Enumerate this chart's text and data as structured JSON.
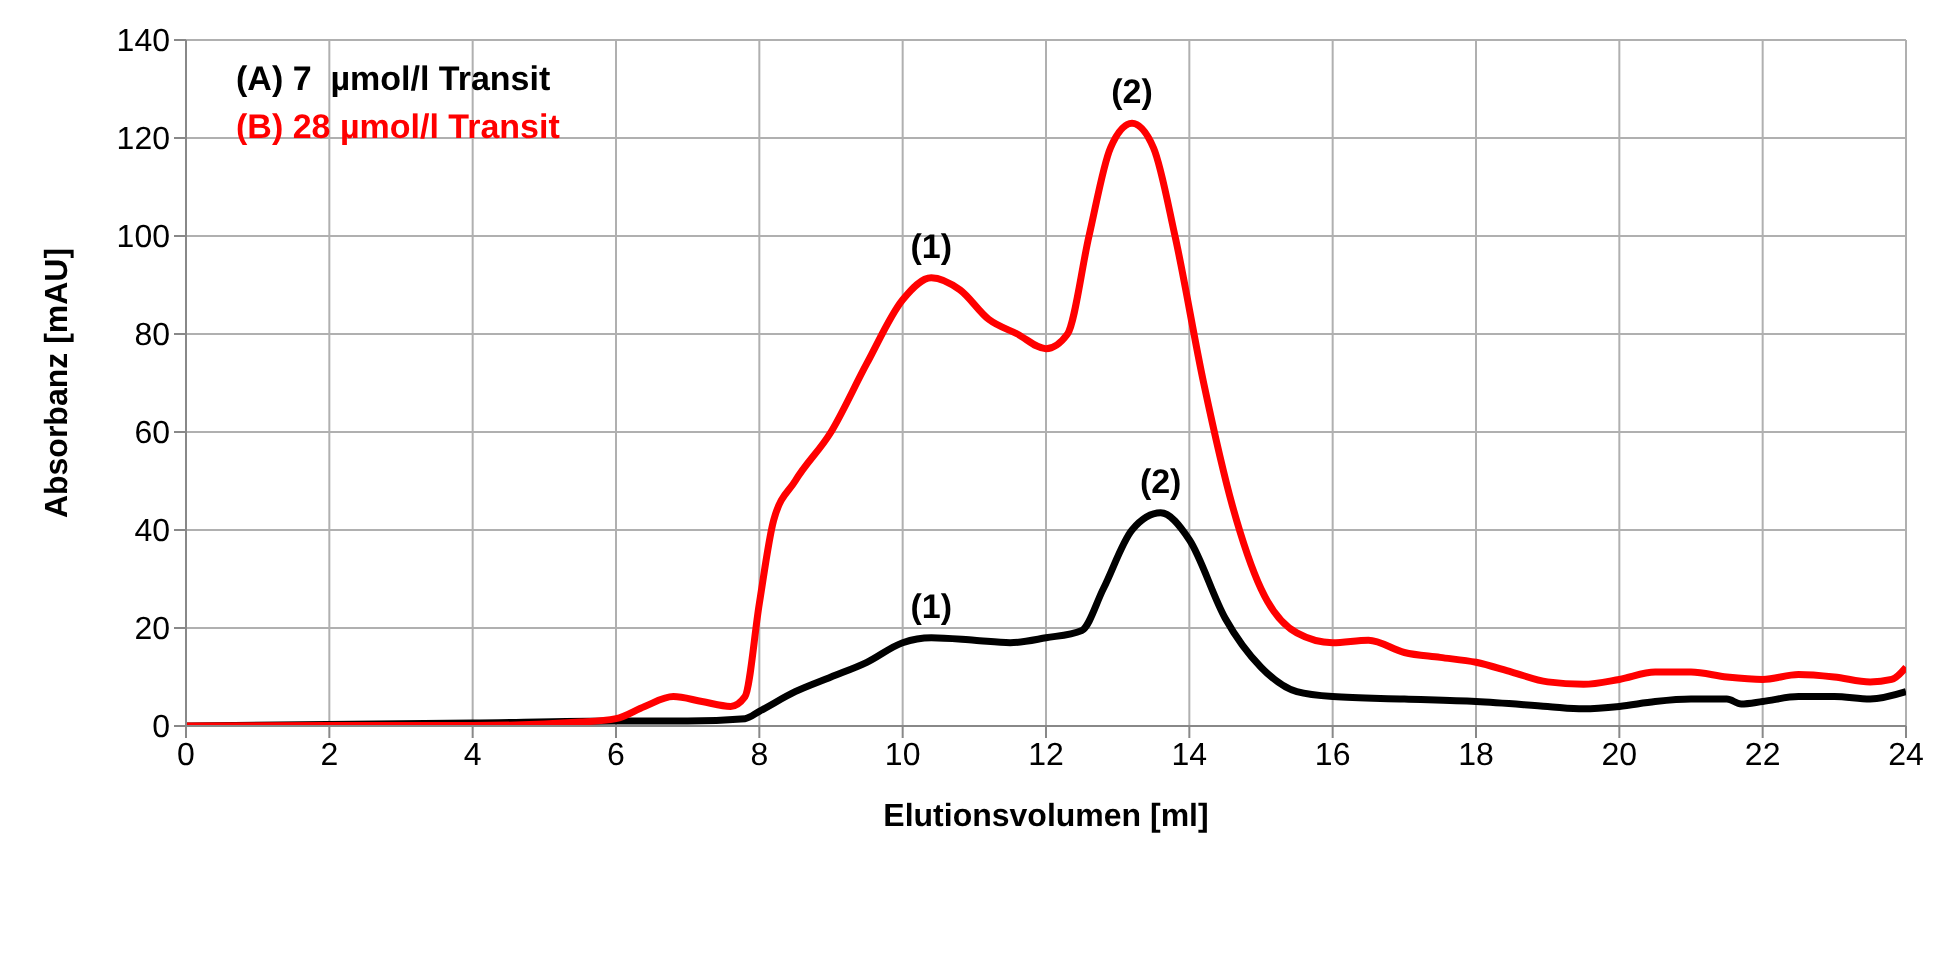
{
  "chart_data": {
    "type": "line",
    "xlabel": "Elutionsvolumen [ml]",
    "ylabel": "Absorbanz [mAU]",
    "xlim": [
      0,
      24
    ],
    "xticks": [
      0,
      2,
      4,
      6,
      8,
      10,
      12,
      14,
      16,
      18,
      20,
      22,
      24
    ],
    "ylim": [
      0,
      140
    ],
    "yticks": [
      0,
      20,
      40,
      60,
      80,
      100,
      120,
      140
    ],
    "grid": true,
    "legend": "top left",
    "marker": "none",
    "line_style": "solid",
    "series": [
      {
        "name": "(A) 7  µmol/l Transit",
        "color": "#000000",
        "x": [
          0,
          4,
          6,
          7,
          7.8,
          8,
          8.5,
          9,
          9.5,
          10,
          10.4,
          11,
          11.5,
          12,
          12.5,
          12.8,
          13.2,
          13.6,
          14,
          14.5,
          15,
          15.5,
          16,
          17,
          18,
          19,
          19.5,
          20,
          20.5,
          21,
          21.5,
          21.7,
          22,
          22.5,
          23,
          23.5,
          24
        ],
        "values": [
          0,
          0.6,
          1,
          1,
          1.5,
          3,
          7,
          10,
          13,
          17,
          18,
          17.5,
          17,
          18,
          19.5,
          28,
          40,
          43.5,
          38,
          22,
          12,
          7,
          6,
          5.5,
          5,
          4,
          3.5,
          4,
          5,
          5.5,
          5.5,
          4.5,
          5,
          6,
          6,
          5.5,
          7
        ]
      },
      {
        "name": "(B) 28 µmol/l Transit",
        "color": "#ff0000",
        "x": [
          0,
          2,
          4,
          5.5,
          6,
          6.4,
          6.8,
          7.2,
          7.6,
          7.8,
          8,
          8.2,
          8.5,
          9,
          9.5,
          10,
          10.4,
          10.8,
          11.2,
          11.6,
          12,
          12.3,
          12.6,
          12.9,
          13.2,
          13.5,
          13.8,
          14.2,
          14.6,
          15,
          15.5,
          16,
          16.5,
          17,
          17.5,
          18,
          18.5,
          19,
          19.5,
          20,
          20.5,
          21,
          21.5,
          22,
          22.5,
          23,
          23.5,
          23.8,
          24
        ],
        "values": [
          0,
          0.1,
          0.1,
          0.8,
          1.5,
          4,
          6,
          5,
          4,
          6,
          25,
          42,
          50,
          60,
          74,
          87,
          91.5,
          89,
          83,
          80,
          77,
          80,
          100,
          118,
          123,
          118,
          100,
          70,
          45,
          28,
          19,
          17,
          17.5,
          15,
          14,
          13,
          11,
          9,
          8.5,
          9.5,
          11,
          11,
          10,
          9.5,
          10.5,
          10,
          9,
          9.5,
          12
        ]
      }
    ],
    "annotations": [
      {
        "text": "(1)",
        "x": 10.4,
        "y": 91.5
      },
      {
        "text": "(2)",
        "x": 13.2,
        "y": 123
      },
      {
        "text": "(1)",
        "x": 10.4,
        "y": 18
      },
      {
        "text": "(2)",
        "x": 13.6,
        "y": 43.5
      }
    ]
  }
}
